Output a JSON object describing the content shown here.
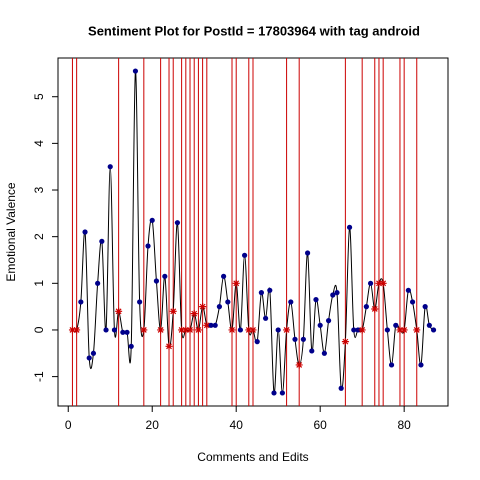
{
  "chart_data": {
    "type": "line",
    "title": "Sentiment Plot for PostId =  17803964  with tag  android",
    "x_label": "Comments and Edits",
    "y_label": "Emotional Valence",
    "x": [
      1,
      2,
      3,
      4,
      5,
      6,
      7,
      8,
      9,
      10,
      11,
      12,
      13,
      14,
      15,
      16,
      17,
      18,
      19,
      20,
      21,
      22,
      23,
      24,
      25,
      26,
      27,
      28,
      29,
      30,
      31,
      32,
      33,
      34,
      35,
      36,
      37,
      38,
      39,
      40,
      41,
      42,
      43,
      44,
      45,
      46,
      47,
      48,
      49,
      50,
      51,
      52,
      53,
      54,
      55,
      56,
      57,
      58,
      59,
      60,
      61,
      62,
      63,
      64,
      65,
      66,
      67,
      68,
      69,
      70,
      71,
      72,
      73,
      74,
      75,
      76,
      77,
      78,
      79,
      80,
      81,
      82,
      83,
      84,
      85,
      86,
      87
    ],
    "series": [
      {
        "name": "Emotional Valence",
        "color": "#00008b",
        "line_color": "#000000",
        "values": [
          0,
          0,
          0.6,
          2.1,
          -0.6,
          -0.5,
          1.0,
          1.9,
          0,
          3.5,
          0,
          0.4,
          -0.05,
          -0.05,
          -0.35,
          5.55,
          0.6,
          0,
          1.8,
          2.35,
          1.05,
          0,
          1.15,
          -0.35,
          0.4,
          2.3,
          0,
          0,
          0,
          0.35,
          0,
          0.5,
          0.1,
          0.1,
          0.1,
          0.5,
          1.15,
          0.6,
          0,
          1.0,
          0,
          1.6,
          0,
          0,
          -0.25,
          0.8,
          0.25,
          0.85,
          -1.35,
          0,
          -1.35,
          0,
          0.6,
          -0.2,
          -0.75,
          -0.2,
          1.65,
          -0.45,
          0.65,
          0.1,
          -0.5,
          0.2,
          0.75,
          0.8,
          -1.25,
          -0.25,
          2.2,
          0,
          0,
          0,
          0.5,
          1.0,
          0.45,
          1.0,
          1.0,
          0,
          -0.75,
          0.1,
          0,
          0,
          0.85,
          0.6,
          0,
          -0.75,
          0.5,
          0.1,
          0
        ]
      }
    ],
    "highlight_x": [
      1,
      2,
      12,
      18,
      22,
      24,
      25,
      27,
      28,
      29,
      30,
      31,
      32,
      33,
      39,
      40,
      43,
      44,
      52,
      55,
      66,
      70,
      73,
      74,
      75,
      79,
      80,
      83
    ],
    "highlight_color": "#cc0000",
    "xlim": [
      -2.44,
      90.44
    ],
    "ylim": [
      -1.63,
      5.83
    ],
    "xticks": [
      0,
      20,
      40,
      60,
      80
    ],
    "yticks": [
      -1,
      0,
      1,
      2,
      3,
      4,
      5
    ]
  }
}
